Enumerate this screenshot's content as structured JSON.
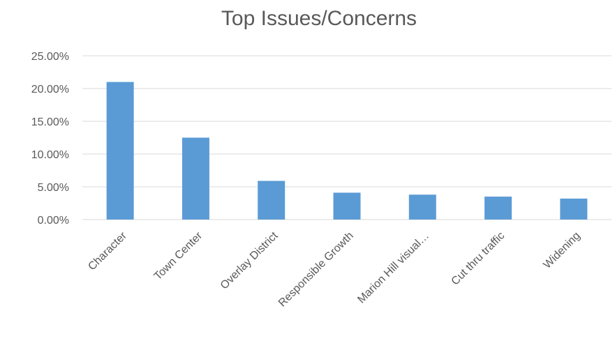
{
  "chart_data": {
    "type": "bar",
    "title": "Top Issues/Concerns",
    "xlabel": "",
    "ylabel": "",
    "categories": [
      "Character",
      "Town Center",
      "Overlay District",
      "Responsible Growth",
      "Marion Hill visual…",
      "Cut thru traffic",
      "Widening"
    ],
    "values": [
      21.0,
      12.5,
      5.9,
      4.1,
      3.8,
      3.5,
      3.2
    ],
    "ylim": [
      0,
      25
    ],
    "yticks": [
      "0.00%",
      "5.00%",
      "10.00%",
      "15.00%",
      "20.00%",
      "25.00%"
    ],
    "bar_color": "#5b9bd5",
    "grid": true,
    "legend": "none"
  }
}
